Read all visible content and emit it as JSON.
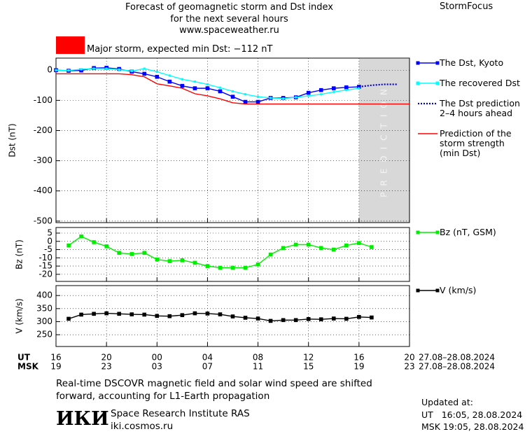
{
  "chart_data": [
    {
      "type": "line",
      "title": "Forecast of geomagnetic storm and Dst index\nfor the next several hours\nwww.spaceweather.ru",
      "brand": "StormFocus",
      "alert": {
        "text": "Major storm, expected min Dst: −112 nT",
        "color": "#ff0000"
      },
      "shade_label": "PREDICTION",
      "ylabel": "Dst (nT)",
      "ylim": [
        -505,
        40
      ],
      "yticks": [
        0,
        -100,
        -200,
        -300,
        -400,
        -500
      ],
      "grid": true,
      "series": [
        {
          "name": "The Dst, Kyoto",
          "color": "#0000ff",
          "marker": "square",
          "dash": "solid",
          "x": [
            0,
            1,
            2,
            3,
            4,
            5,
            6,
            7,
            8,
            9,
            10,
            11,
            12,
            13,
            14,
            15,
            16,
            17,
            18,
            19,
            20,
            21,
            22,
            23,
            24
          ],
          "values": [
            0,
            -2,
            -1,
            7,
            8,
            4,
            -5,
            -12,
            -22,
            -38,
            -52,
            -60,
            -60,
            -70,
            -88,
            -105,
            -105,
            -92,
            -92,
            -90,
            -75,
            -66,
            -60,
            -57,
            -55
          ]
        },
        {
          "name": "The recovered Dst",
          "color": "#00ffff",
          "marker": "dot",
          "dash": "solid",
          "x": [
            0,
            1,
            2,
            3,
            4,
            5,
            6,
            7,
            8,
            9,
            10,
            11,
            12,
            13,
            14,
            15,
            16,
            17,
            18,
            19,
            20,
            21,
            22,
            23,
            24
          ],
          "values": [
            0,
            -1,
            3,
            5,
            5,
            2,
            -3,
            5,
            -5,
            -18,
            -30,
            -38,
            -47,
            -58,
            -70,
            -80,
            -88,
            -92,
            -94,
            -90,
            -85,
            -80,
            -72,
            -66,
            -60
          ]
        },
        {
          "name": "The Dst prediction\n2–4 hours ahead",
          "color": "#0000cc",
          "marker": "none",
          "dash": "dotted",
          "x": [
            24,
            25,
            26,
            27
          ],
          "values": [
            -55,
            -50,
            -47,
            -47
          ]
        },
        {
          "name": "Prediction of the\nstorm strength\n(min Dst)",
          "color": "#ff0000",
          "marker": "none",
          "dash": "solid",
          "x": [
            0,
            5,
            6,
            7,
            8,
            9,
            10,
            11,
            12,
            13,
            14,
            15,
            28
          ],
          "values": [
            -12,
            -12,
            -15,
            -22,
            -45,
            -52,
            -60,
            -78,
            -85,
            -95,
            -108,
            -112,
            -112
          ]
        }
      ]
    },
    {
      "type": "line",
      "ylabel": "Bz (nT)",
      "ylim": [
        -24.3,
        8.4
      ],
      "yticks": [
        5,
        0,
        -5,
        -10,
        -15,
        -20
      ],
      "grid": true,
      "series": [
        {
          "name": "Bz (nT, GSM)",
          "color": "#00ee00",
          "marker": "square",
          "dash": "solid",
          "x": [
            1,
            2,
            3,
            4,
            5,
            6,
            7,
            8,
            9,
            10,
            11,
            12,
            13,
            14,
            15,
            16,
            17,
            18,
            19,
            20,
            21,
            22,
            23,
            24,
            25
          ],
          "values": [
            -2.5,
            3,
            -0.5,
            -3,
            -7,
            -7.7,
            -7,
            -11,
            -12,
            -11.5,
            -13,
            -15,
            -16,
            -16,
            -16,
            -14,
            -8,
            -4,
            -2,
            -2,
            -4,
            -5,
            -2.5,
            -1,
            -3.5
          ]
        }
      ]
    },
    {
      "type": "line",
      "ylabel": "V (km/s)",
      "ylim": [
        205,
        438
      ],
      "yticks": [
        400,
        350,
        300,
        250
      ],
      "grid": true,
      "xlim": [
        0,
        28
      ],
      "xlabel": "UT",
      "xticks": [
        {
          "value": 0,
          "label": "16"
        },
        {
          "value": 4,
          "label": "20"
        },
        {
          "value": 8,
          "label": "00"
        },
        {
          "value": 12,
          "label": "04"
        },
        {
          "value": 16,
          "label": "08"
        },
        {
          "value": 20,
          "label": "12"
        },
        {
          "value": 24,
          "label": "16"
        },
        {
          "value": 28,
          "label": "20"
        }
      ],
      "xdates": "27.08–28.08.2024",
      "x2label": "MSK",
      "x2ticks": [
        {
          "value": 0,
          "label": "19"
        },
        {
          "value": 4,
          "label": "23"
        },
        {
          "value": 8,
          "label": "03"
        },
        {
          "value": 12,
          "label": "07"
        },
        {
          "value": 16,
          "label": "11"
        },
        {
          "value": 20,
          "label": "15"
        },
        {
          "value": 24,
          "label": "19"
        },
        {
          "value": 28,
          "label": "23"
        }
      ],
      "x2dates": "27.08–28.08.2024",
      "series": [
        {
          "name": "V (km/s)",
          "color": "#000000",
          "marker": "square",
          "dash": "solid",
          "x": [
            1,
            2,
            3,
            4,
            5,
            6,
            7,
            8,
            9,
            10,
            11,
            12,
            13,
            14,
            15,
            16,
            17,
            18,
            19,
            20,
            21,
            22,
            23,
            24,
            25
          ],
          "values": [
            311,
            327,
            330,
            332,
            330,
            328,
            327,
            322,
            321,
            325,
            332,
            331,
            328,
            320,
            315,
            312,
            303,
            306,
            306,
            310,
            309,
            312,
            311,
            318,
            316
          ]
        }
      ]
    }
  ],
  "footer": {
    "note": "Real-time DSCOVR magnetic field and solar wind speed are shifted\nforward, accounting for L1-Earth propagation",
    "logo": "ИКИ",
    "institute": "Space Research Institute RAS",
    "site": "iki.cosmos.ru",
    "updated": "Updated at:",
    "updated_ut": "UT   16:05, 28.08.2024",
    "updated_msk": "MSK 19:05, 28.08.2024"
  }
}
